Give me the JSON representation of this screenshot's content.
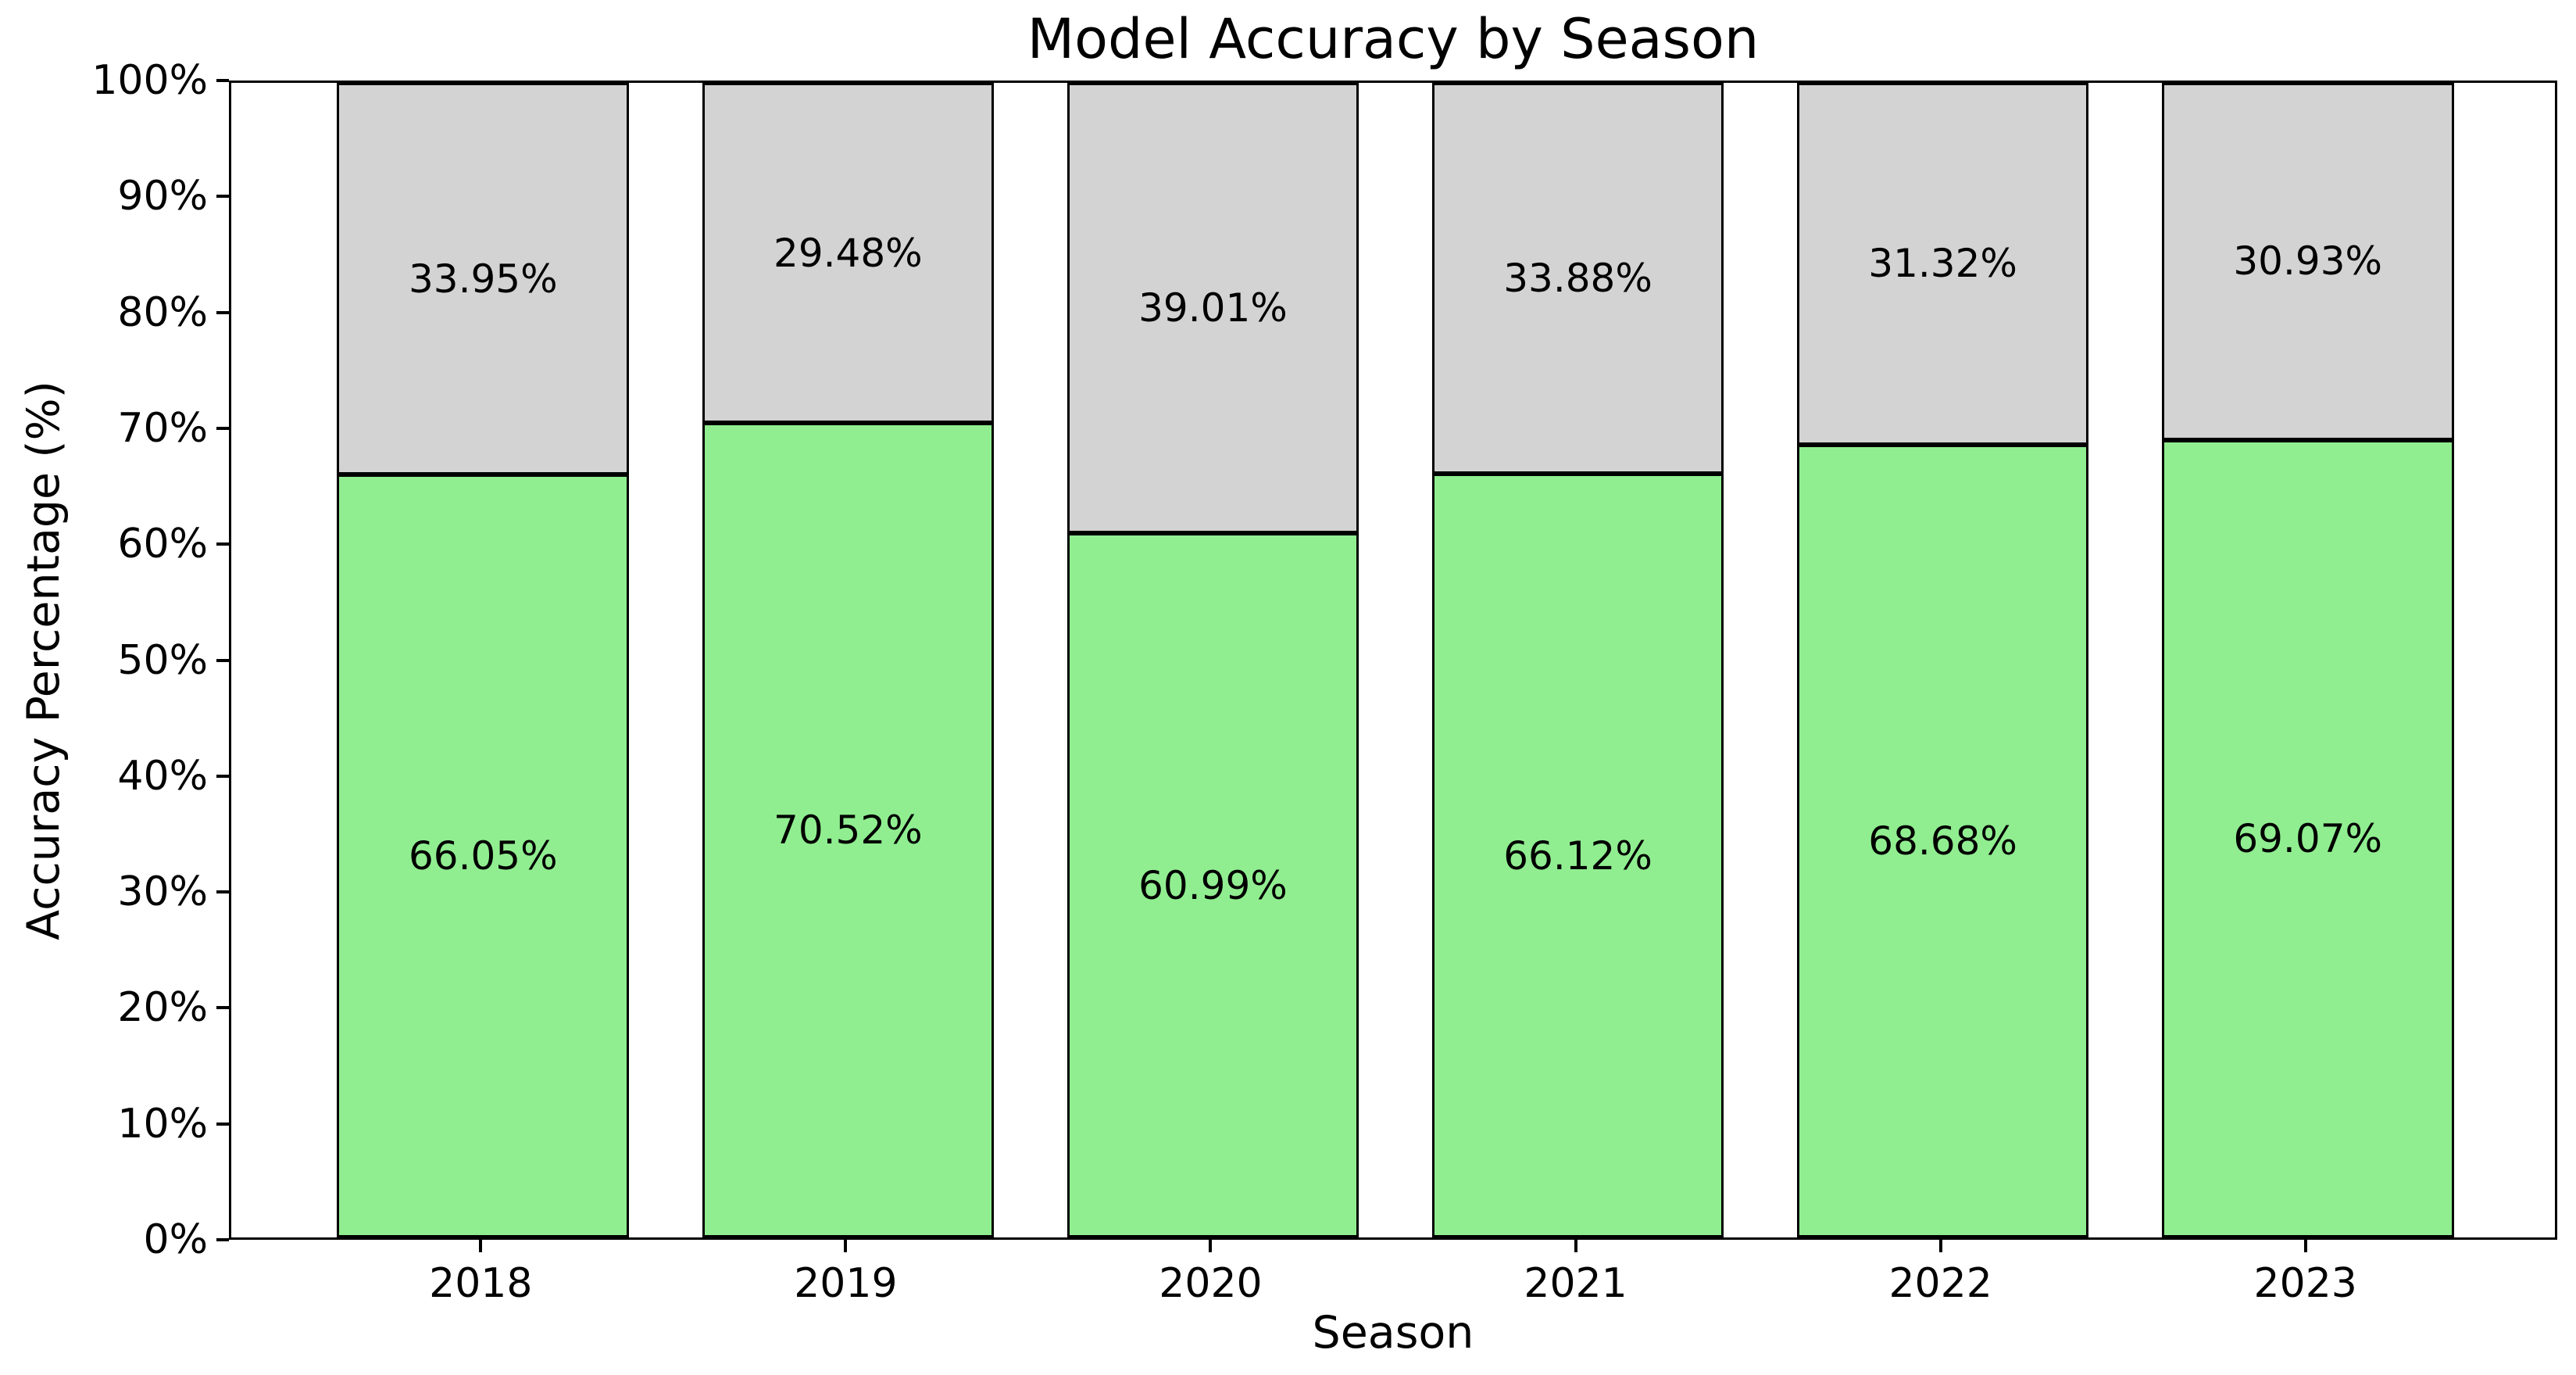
{
  "chart_data": {
    "type": "bar",
    "stacked": true,
    "title": "Model Accuracy by Season",
    "xlabel": "Season",
    "ylabel": "Accuracy Percentage (%)",
    "categories": [
      "2018",
      "2019",
      "2020",
      "2021",
      "2022",
      "2023"
    ],
    "series": [
      {
        "name": "accuracy-bottom-green",
        "color": "#90EE90",
        "values": [
          66.05,
          70.52,
          60.99,
          66.12,
          68.68,
          69.07
        ],
        "labels": [
          "66.05%",
          "70.52%",
          "60.99%",
          "66.12%",
          "68.68%",
          "69.07%"
        ]
      },
      {
        "name": "remainder-top-gray",
        "color": "#D3D3D3",
        "values": [
          33.95,
          29.48,
          39.01,
          33.88,
          31.32,
          30.93
        ],
        "labels": [
          "33.95%",
          "29.48%",
          "39.01%",
          "33.88%",
          "31.32%",
          "30.93%"
        ]
      }
    ],
    "y_ticks": [
      {
        "value": 0,
        "label": "0%"
      },
      {
        "value": 10,
        "label": "10%"
      },
      {
        "value": 20,
        "label": "20%"
      },
      {
        "value": 30,
        "label": "30%"
      },
      {
        "value": 40,
        "label": "40%"
      },
      {
        "value": 50,
        "label": "50%"
      },
      {
        "value": 60,
        "label": "60%"
      },
      {
        "value": 70,
        "label": "70%"
      },
      {
        "value": 80,
        "label": "80%"
      },
      {
        "value": 90,
        "label": "90%"
      },
      {
        "value": 100,
        "label": "100%"
      }
    ],
    "ylim": [
      0,
      100
    ],
    "bar_edge_color": "#000000",
    "label_color": "#000000",
    "background_color": "#FFFFFF",
    "legend": null,
    "grid": false
  }
}
